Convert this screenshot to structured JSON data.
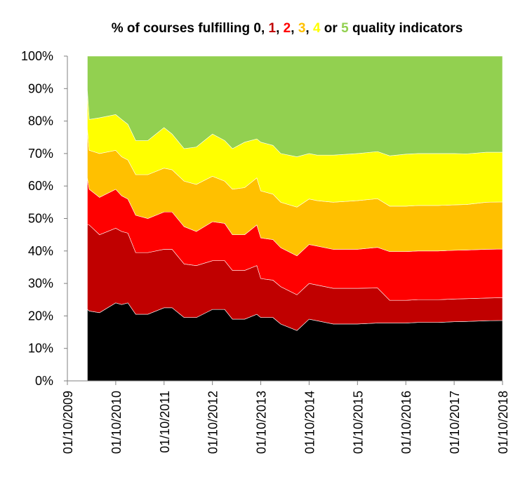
{
  "colors": {
    "s0": "#000000",
    "s1": "#c00000",
    "s2": "#ff0000",
    "s3": "#ffc000",
    "s4": "#ffff00",
    "s5": "#92d050",
    "axis": "#808080",
    "text": "#000000"
  },
  "chart_data": {
    "type": "area",
    "stacked": true,
    "normalized_percent": true,
    "title_parts": [
      {
        "text": "% of courses fulfilling 0, ",
        "color": "#000000"
      },
      {
        "text": "1",
        "color": "#c00000"
      },
      {
        "text": ", ",
        "color": "#000000"
      },
      {
        "text": "2",
        "color": "#ff0000"
      },
      {
        "text": ", ",
        "color": "#000000"
      },
      {
        "text": "3",
        "color": "#ffc000"
      },
      {
        "text": ", ",
        "color": "#000000"
      },
      {
        "text": "4",
        "color": "#ffff00"
      },
      {
        "text": " or ",
        "color": "#000000"
      },
      {
        "text": "5",
        "color": "#92d050"
      },
      {
        "text": " quality indicators",
        "color": "#000000"
      }
    ],
    "xlabel": "",
    "ylabel": "",
    "x_range": [
      "2009-10-01",
      "2018-10-01"
    ],
    "x_ticks": [
      "01/10/2009",
      "01/10/2010",
      "01/10/2011",
      "01/10/2012",
      "01/10/2013",
      "01/10/2014",
      "01/10/2015",
      "01/10/2016",
      "01/10/2017",
      "01/10/2018"
    ],
    "ylim": [
      0,
      100
    ],
    "y_ticks": [
      "0%",
      "10%",
      "20%",
      "30%",
      "40%",
      "50%",
      "60%",
      "70%",
      "80%",
      "90%",
      "100%"
    ],
    "grid": false,
    "legend": "none",
    "dates": [
      "2010-03-01",
      "2010-03-15",
      "2010-06-01",
      "2010-10-01",
      "2010-11-15",
      "2011-01-01",
      "2011-03-01",
      "2011-06-01",
      "2011-10-01",
      "2011-12-01",
      "2012-03-01",
      "2012-06-01",
      "2012-10-01",
      "2013-01-01",
      "2013-03-01",
      "2013-06-01",
      "2013-09-01",
      "2013-10-01",
      "2014-01-01",
      "2014-03-01",
      "2014-07-01",
      "2014-10-01",
      "2014-12-01",
      "2015-04-01",
      "2015-10-01",
      "2016-03-01",
      "2016-06-01",
      "2016-10-01",
      "2017-01-01",
      "2017-06-01",
      "2017-10-01",
      "2018-01-01",
      "2018-06-01",
      "2018-10-01"
    ],
    "series": [
      {
        "values": [
          22,
          21.5,
          21,
          24,
          23.5,
          24,
          20.5,
          20.5,
          22.5,
          22.5,
          19.5,
          19.5,
          22,
          22,
          19,
          19,
          20.5,
          19.5,
          19.5,
          17.5,
          15.5,
          19,
          18.5,
          17.5,
          17.5,
          17.8,
          17.8,
          17.8,
          18,
          18,
          18.2,
          18.3,
          18.5,
          18.6
        ]
      },
      {
        "values": [
          26,
          26.5,
          24,
          23,
          22.5,
          21.5,
          19,
          19,
          18,
          18,
          16.5,
          16,
          15,
          15,
          15,
          15,
          15,
          12,
          11.5,
          11.5,
          11,
          11,
          11,
          11,
          11,
          10.8,
          7,
          7,
          7,
          7,
          7,
          7,
          7,
          7
        ]
      },
      {
        "values": [
          14.5,
          11,
          11.5,
          12,
          11,
          10.5,
          11.5,
          10.5,
          11.5,
          11.5,
          11.5,
          10.5,
          12,
          11.5,
          11,
          11,
          12.5,
          12.5,
          12.5,
          12,
          12,
          12,
          12,
          12,
          12,
          12.5,
          15,
          15,
          15,
          15,
          15,
          15,
          15,
          15
        ]
      },
      {
        "values": [
          15,
          12,
          13.5,
          12,
          12,
          12,
          12.5,
          13.5,
          13.5,
          13,
          14,
          14.5,
          14,
          13,
          14,
          14.5,
          14.5,
          14.5,
          14,
          14,
          15,
          14,
          14,
          14.5,
          15,
          15,
          14,
          14,
          14,
          14,
          14,
          14,
          14.5,
          14.5
        ]
      },
      {
        "values": [
          12,
          9.5,
          11,
          11,
          11.5,
          11,
          10.5,
          10.5,
          12.5,
          11,
          10,
          11.5,
          13,
          12.5,
          12.5,
          14,
          12,
          15,
          15,
          15,
          15.5,
          14,
          14,
          14.5,
          14.5,
          14.5,
          15.5,
          16,
          16,
          16,
          15.8,
          15.6,
          15.4,
          15.3
        ]
      },
      {
        "values": [
          10.5,
          19.5,
          19,
          18,
          19.5,
          21,
          26,
          26,
          22,
          24,
          28.5,
          28,
          24,
          26,
          28.5,
          26.5,
          25.5,
          26.5,
          27.5,
          30,
          31,
          30,
          30.5,
          30.5,
          30,
          29.4,
          30.7,
          30.2,
          30,
          30,
          30,
          30.1,
          29.6,
          29.6
        ]
      }
    ]
  }
}
